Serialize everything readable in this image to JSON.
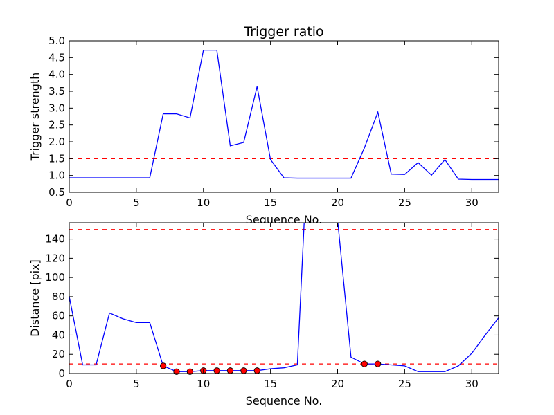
{
  "chart_data": [
    {
      "type": "line",
      "title": "Trigger ratio",
      "xlabel": "Sequence No.",
      "ylabel": "Trigger strength",
      "xlim": [
        0,
        32
      ],
      "ylim": [
        0.5,
        5.0
      ],
      "xticks": [
        0,
        5,
        10,
        15,
        20,
        25,
        30
      ],
      "yticks": [
        0.5,
        1.0,
        1.5,
        2.0,
        2.5,
        3.0,
        3.5,
        4.0,
        4.5,
        5.0
      ],
      "x": [
        0,
        1,
        2,
        3,
        4,
        5,
        6,
        7,
        8,
        9,
        10,
        11,
        12,
        13,
        14,
        15,
        16,
        17,
        18,
        19,
        20,
        21,
        22,
        23,
        24,
        25,
        26,
        27,
        28,
        29,
        30,
        31,
        32
      ],
      "series": [
        {
          "color": "#0000ff",
          "values": [
            0.93,
            0.93,
            0.93,
            0.93,
            0.93,
            0.93,
            0.93,
            2.83,
            2.83,
            2.71,
            4.72,
            4.72,
            1.88,
            1.98,
            3.64,
            1.47,
            0.93,
            0.92,
            0.92,
            0.92,
            0.92,
            0.92,
            1.82,
            2.88,
            1.04,
            1.03,
            1.38,
            1.01,
            1.47,
            0.89,
            0.88,
            0.88,
            0.88
          ]
        }
      ],
      "hlines": [
        {
          "y": 1.5,
          "color": "#ff0000",
          "style": "dashed"
        }
      ],
      "grid": false
    },
    {
      "type": "line",
      "title": "",
      "xlabel": "Sequence No.",
      "ylabel": "Distance [pix]",
      "xlim": [
        0,
        32
      ],
      "ylim": [
        0,
        157
      ],
      "xticks": [
        0,
        5,
        10,
        15,
        20,
        25,
        30
      ],
      "yticks": [
        0,
        20,
        40,
        60,
        80,
        100,
        120,
        140
      ],
      "x": [
        0,
        1,
        2,
        3,
        4,
        5,
        6,
        7,
        8,
        9,
        10,
        11,
        12,
        13,
        14,
        15,
        16,
        17,
        18,
        19,
        20,
        21,
        22,
        23,
        24,
        25,
        26,
        27,
        28,
        29,
        30,
        31,
        32
      ],
      "series": [
        {
          "color": "#0000ff",
          "values": [
            80,
            9,
            9,
            63,
            57,
            53,
            53,
            8,
            2,
            2,
            3,
            3,
            3,
            3,
            3,
            5,
            6,
            9,
            300,
            300,
            160,
            17,
            10,
            10,
            9,
            8,
            2,
            2,
            2,
            8,
            21,
            40,
            58
          ]
        }
      ],
      "markers": {
        "color": "#ff0000",
        "x": [
          7,
          8,
          9,
          10,
          11,
          12,
          13,
          14,
          22,
          23
        ],
        "y": [
          8,
          2,
          2,
          3,
          3,
          3,
          3,
          3,
          10,
          10
        ]
      },
      "hlines": [
        {
          "y": 150,
          "color": "#ff0000",
          "style": "dashed"
        },
        {
          "y": 10,
          "color": "#ff0000",
          "style": "dashed"
        }
      ],
      "grid": false
    }
  ]
}
